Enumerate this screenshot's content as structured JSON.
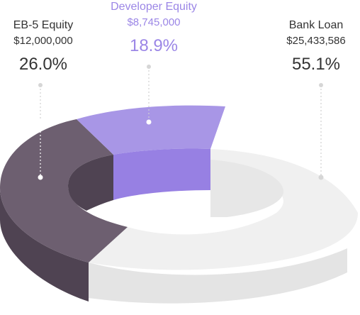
{
  "chart_data": {
    "type": "pie",
    "style": "3d-donut",
    "slices": [
      {
        "name": "EB-5 Equity",
        "amount": "$12,000,000",
        "percent_label": "26.0%",
        "value": 26.0,
        "color": "#6d5f70"
      },
      {
        "name": "Developer Equity",
        "amount": "$8,745,000",
        "percent_label": "18.9%",
        "value": 18.9,
        "color": "#a896e6"
      },
      {
        "name": "Bank Loan",
        "amount": "$25,433,586",
        "percent_label": "55.1%",
        "value": 55.1,
        "color": "#eeeeee"
      }
    ]
  }
}
